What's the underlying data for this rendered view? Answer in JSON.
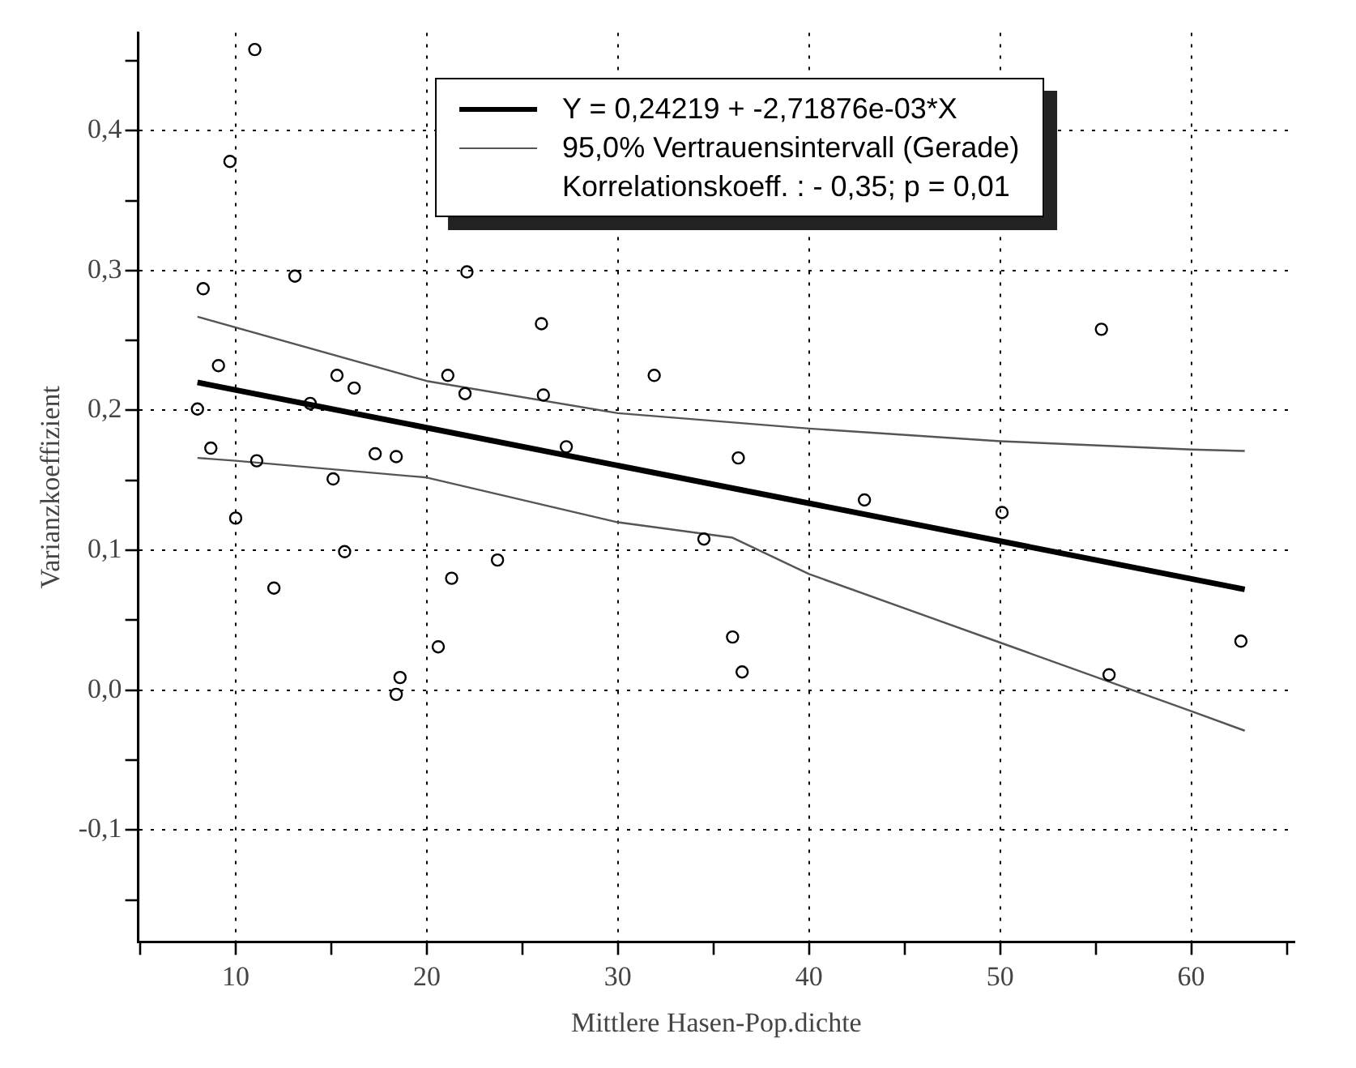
{
  "chart_data": {
    "type": "scatter",
    "xlabel": "Mittlere Hasen-Pop.dichte",
    "ylabel": "Varianzkoeffizient",
    "xlim": [
      4.9,
      65.4
    ],
    "ylim": [
      -0.18,
      0.47
    ],
    "xticks": [
      {
        "value": 5,
        "label": null
      },
      10,
      {
        "value": 15,
        "label": null
      },
      20,
      {
        "value": 25,
        "label": null
      },
      30,
      {
        "value": 35,
        "label": null
      },
      40,
      {
        "value": 45,
        "label": null
      },
      50,
      {
        "value": 55,
        "label": null
      },
      60,
      {
        "value": 65,
        "label": null
      }
    ],
    "yticks": [
      {
        "value": -0.15,
        "label": null
      },
      {
        "value": -0.1,
        "label": "-0,1"
      },
      {
        "value": -0.05,
        "label": null
      },
      {
        "value": 0,
        "label": "0,0"
      },
      {
        "value": 0.05,
        "label": null
      },
      {
        "value": 0.1,
        "label": "0,1"
      },
      {
        "value": 0.15,
        "label": null
      },
      {
        "value": 0.2,
        "label": "0,2"
      },
      {
        "value": 0.25,
        "label": null
      },
      {
        "value": 0.3,
        "label": "0,3"
      },
      {
        "value": 0.35,
        "label": null
      },
      {
        "value": 0.4,
        "label": "0,4"
      },
      {
        "value": 0.45,
        "label": null
      }
    ],
    "grid": true,
    "legend": "top",
    "annotations": [
      "Korrelationskoeff. : - 0,35; p = 0,01"
    ],
    "series": [
      {
        "marker": "circle",
        "color": "#000000",
        "x": [
          11.0,
          9.7,
          8.3,
          13.1,
          22.1,
          9.1,
          26.0,
          8.0,
          8.7,
          11.1,
          13.9,
          15.3,
          16.2,
          21.1,
          22.0,
          26.1,
          31.9,
          27.3,
          17.3,
          18.4,
          15.1,
          10.0,
          15.7,
          12.0,
          21.3,
          23.7,
          20.6,
          18.6,
          18.4,
          34.5,
          36.3,
          42.9,
          50.1,
          55.3,
          36.0,
          36.5,
          55.7,
          62.6
        ],
        "values": [
          0.458,
          0.378,
          0.287,
          0.296,
          0.299,
          0.232,
          0.262,
          0.201,
          0.173,
          0.164,
          0.205,
          0.225,
          0.216,
          0.225,
          0.212,
          0.211,
          0.225,
          0.174,
          0.169,
          0.167,
          0.151,
          0.123,
          0.099,
          0.073,
          0.08,
          0.093,
          0.031,
          0.009,
          -0.003,
          0.108,
          0.166,
          0.136,
          0.127,
          0.258,
          0.038,
          0.013,
          0.011,
          0.035
        ]
      },
      {
        "type": "line",
        "name": "Y = 0,24219 + -2,71876e-03*X",
        "color": "#000000",
        "marker": "none",
        "x": [
          8,
          62.8
        ],
        "values": [
          0.22,
          0.072
        ]
      },
      {
        "type": "line",
        "name": "95,0% Vertrauensintervall (Gerade)",
        "color": "#555555",
        "marker": "none",
        "x": [
          8,
          20,
          30,
          40,
          50,
          60,
          62.8
        ],
        "values": [
          0.267,
          0.221,
          0.198,
          0.187,
          0.178,
          0.172,
          0.171
        ]
      },
      {
        "type": "line",
        "color": "#555555",
        "marker": "none",
        "x": [
          8,
          10,
          20,
          30,
          36,
          40,
          50,
          60,
          62.8
        ],
        "values": [
          0.166,
          0.164,
          0.152,
          0.12,
          0.109,
          0.083,
          0.034,
          -0.015,
          -0.029
        ]
      }
    ]
  }
}
